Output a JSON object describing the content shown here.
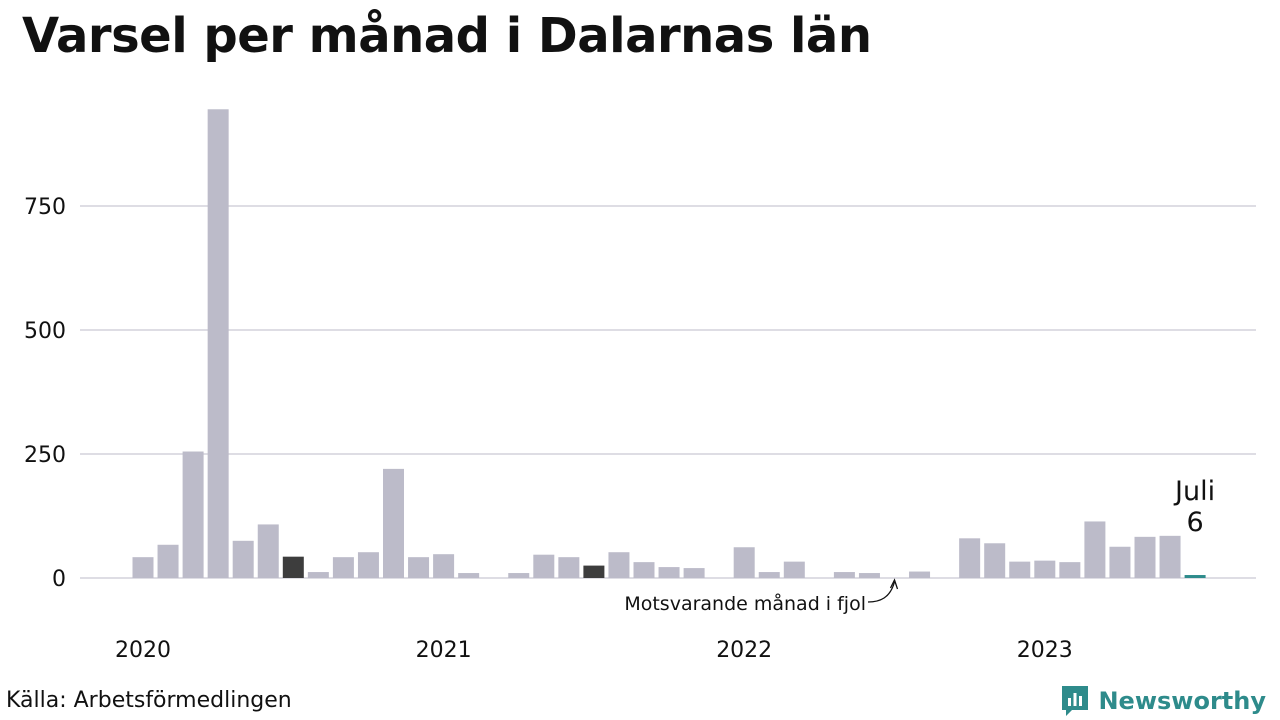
{
  "title": "Varsel per månad i Dalarnas län",
  "source": "Källa: Arbetsförmedlingen",
  "brand": {
    "name": "Newsworthy",
    "icon": "bar-chart-logo-icon"
  },
  "colors": {
    "bar": "#bcbbc9",
    "bar_same_month_last_year": "#3d3d3d",
    "bar_current": "#2e8b8b",
    "grid": "#dedde4",
    "brand": "#2e8b8b"
  },
  "chart_data": {
    "type": "bar",
    "title": "Varsel per månad i Dalarnas län",
    "xlabel": "",
    "ylabel": "",
    "ylim": [
      0,
      1000
    ],
    "yticks": [
      0,
      250,
      500,
      750
    ],
    "grid": true,
    "year_labels": [
      "2020",
      "2021",
      "2022",
      "2023"
    ],
    "categories": [
      "2020-01",
      "2020-02",
      "2020-03",
      "2020-04",
      "2020-05",
      "2020-06",
      "2020-07",
      "2020-08",
      "2020-09",
      "2020-10",
      "2020-11",
      "2020-12",
      "2021-01",
      "2021-02",
      "2021-03",
      "2021-04",
      "2021-05",
      "2021-06",
      "2021-07",
      "2021-08",
      "2021-09",
      "2021-10",
      "2021-11",
      "2021-12",
      "2022-01",
      "2022-02",
      "2022-03",
      "2022-04",
      "2022-05",
      "2022-06",
      "2022-07",
      "2022-08",
      "2022-09",
      "2022-10",
      "2022-11",
      "2022-12",
      "2023-01",
      "2023-02",
      "2023-03",
      "2023-04",
      "2023-05",
      "2023-06",
      "2023-07"
    ],
    "values": [
      42,
      67,
      255,
      945,
      75,
      108,
      43,
      12,
      42,
      52,
      220,
      42,
      48,
      10,
      0,
      10,
      47,
      42,
      25,
      52,
      32,
      22,
      20,
      0,
      62,
      12,
      33,
      0,
      12,
      10,
      0,
      13,
      0,
      80,
      70,
      33,
      35,
      32,
      114,
      63,
      83,
      85,
      6
    ],
    "highlighted_same_month_last_year": [
      "2020-07",
      "2021-07"
    ],
    "current": {
      "category": "2023-07",
      "label": "Juli",
      "value": "6"
    },
    "annotation": "Motsvarande månad i fjol"
  }
}
